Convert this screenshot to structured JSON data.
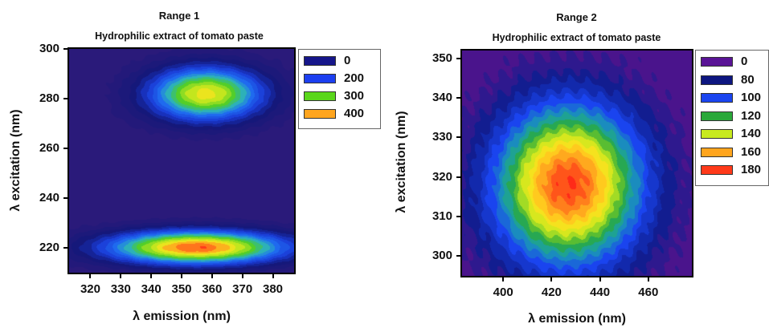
{
  "chart_data": [
    {
      "type": "heatmap",
      "title": "Range 1",
      "subtitle": "Hydrophilic extract of tomato paste",
      "xlabel": "λ emission (nm)",
      "ylabel": "λ excitation (nm)",
      "xlim": [
        313,
        387
      ],
      "ylim": [
        210,
        300
      ],
      "xticks": [
        320,
        330,
        340,
        350,
        360,
        370,
        380
      ],
      "yticks": [
        220,
        240,
        260,
        280,
        300
      ],
      "legend": {
        "placement": "right",
        "levels": [
          {
            "label": "0",
            "color": "#16168a"
          },
          {
            "label": "200",
            "color": "#1c3ff0"
          },
          {
            "label": "300",
            "color": "#5ad61b"
          },
          {
            "label": "400",
            "color": "#ffa51e"
          }
        ]
      },
      "peaks": [
        {
          "x": 358,
          "y": 282,
          "intensity": 380,
          "sx": 14,
          "sy": 8
        },
        {
          "x": 355,
          "y": 220,
          "intensity": 440,
          "sx": 22,
          "sy": 5
        }
      ]
    },
    {
      "type": "heatmap",
      "title": "Range 2",
      "subtitle": "Hydrophilic extract of tomato paste",
      "xlabel": "λ emission (nm)",
      "ylabel": "λ excitation (nm)",
      "xlim": [
        383,
        478
      ],
      "ylim": [
        295,
        352
      ],
      "xticks": [
        400,
        420,
        440,
        460
      ],
      "yticks": [
        300,
        310,
        320,
        330,
        340,
        350
      ],
      "legend": {
        "placement": "right",
        "levels": [
          {
            "label": "0",
            "color": "#5a1496"
          },
          {
            "label": "80",
            "color": "#0d1680"
          },
          {
            "label": "100",
            "color": "#1a45f0"
          },
          {
            "label": "120",
            "color": "#2aa83a"
          },
          {
            "label": "140",
            "color": "#c8ea1e"
          },
          {
            "label": "160",
            "color": "#ffa51e"
          },
          {
            "label": "180",
            "color": "#ff3a1a"
          }
        ]
      },
      "peaks": [
        {
          "x": 427,
          "y": 318,
          "intensity": 190,
          "sx": 21,
          "sy": 14
        }
      ]
    }
  ]
}
